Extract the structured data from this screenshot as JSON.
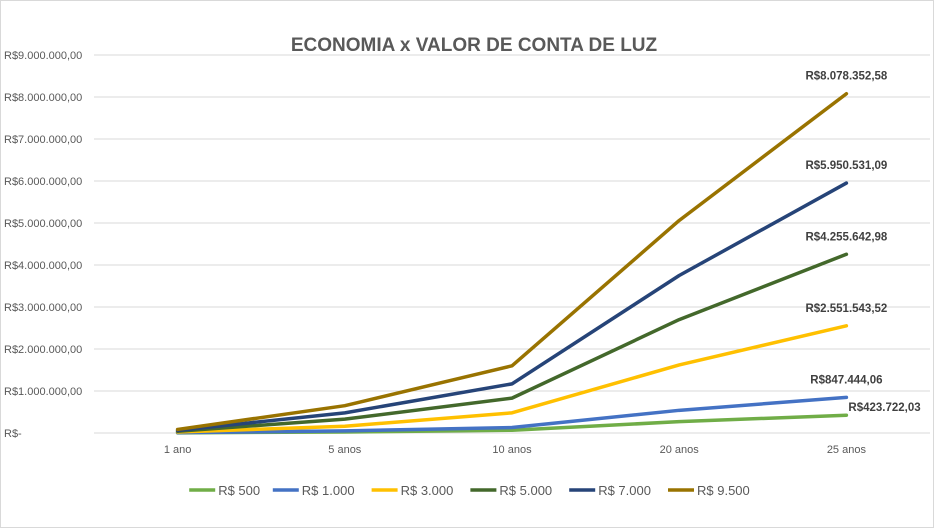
{
  "chart_data": {
    "type": "line",
    "title": "ECONOMIA x VALOR DE CONTA DE LUZ",
    "categories": [
      "1 ano",
      "5 anos",
      "10 anos",
      "20 anos",
      "25 anos"
    ],
    "ylim": [
      0,
      9000000
    ],
    "y_ticks": [
      {
        "value": 0,
        "label": "R$-"
      },
      {
        "value": 1000000,
        "label": "R$1.000.000,00"
      },
      {
        "value": 2000000,
        "label": "R$2.000.000,00"
      },
      {
        "value": 3000000,
        "label": "R$3.000.000,00"
      },
      {
        "value": 4000000,
        "label": "R$4.000.000,00"
      },
      {
        "value": 5000000,
        "label": "R$5.000.000,00"
      },
      {
        "value": 6000000,
        "label": "R$6.000.000,00"
      },
      {
        "value": 7000000,
        "label": "R$7.000.000,00"
      },
      {
        "value": 8000000,
        "label": "R$8.000.000,00"
      },
      {
        "value": 9000000,
        "label": "R$9.000.000,00"
      }
    ],
    "grid": true,
    "legend_position": "bottom",
    "series": [
      {
        "name": "R$ 500",
        "color": "#70ad47",
        "values": [
          4000,
          25000,
          65000,
          270000,
          423722.03
        ],
        "last_label": "R$423.722,03"
      },
      {
        "name": "R$ 1.000",
        "color": "#4472c4",
        "values": [
          8000,
          50000,
          130000,
          540000,
          847444.06
        ],
        "last_label": "R$847.444,06"
      },
      {
        "name": "R$ 3.000",
        "color": "#ffc000",
        "values": [
          25000,
          160000,
          480000,
          1620000,
          2551543.52
        ],
        "last_label": "R$2.551.543,52"
      },
      {
        "name": "R$ 5.000",
        "color": "#43682b",
        "values": [
          42000,
          330000,
          830000,
          2700000,
          4255642.98
        ],
        "last_label": "R$4.255.642,98"
      },
      {
        "name": "R$ 7.000",
        "color": "#264478",
        "values": [
          60000,
          480000,
          1170000,
          3750000,
          5950531.09
        ],
        "last_label": "R$5.950.531,09"
      },
      {
        "name": "R$ 9.500",
        "color": "#997300",
        "values": [
          85000,
          650000,
          1600000,
          5060000,
          8078352.58
        ],
        "last_label": "R$8.078.352,58"
      }
    ]
  }
}
